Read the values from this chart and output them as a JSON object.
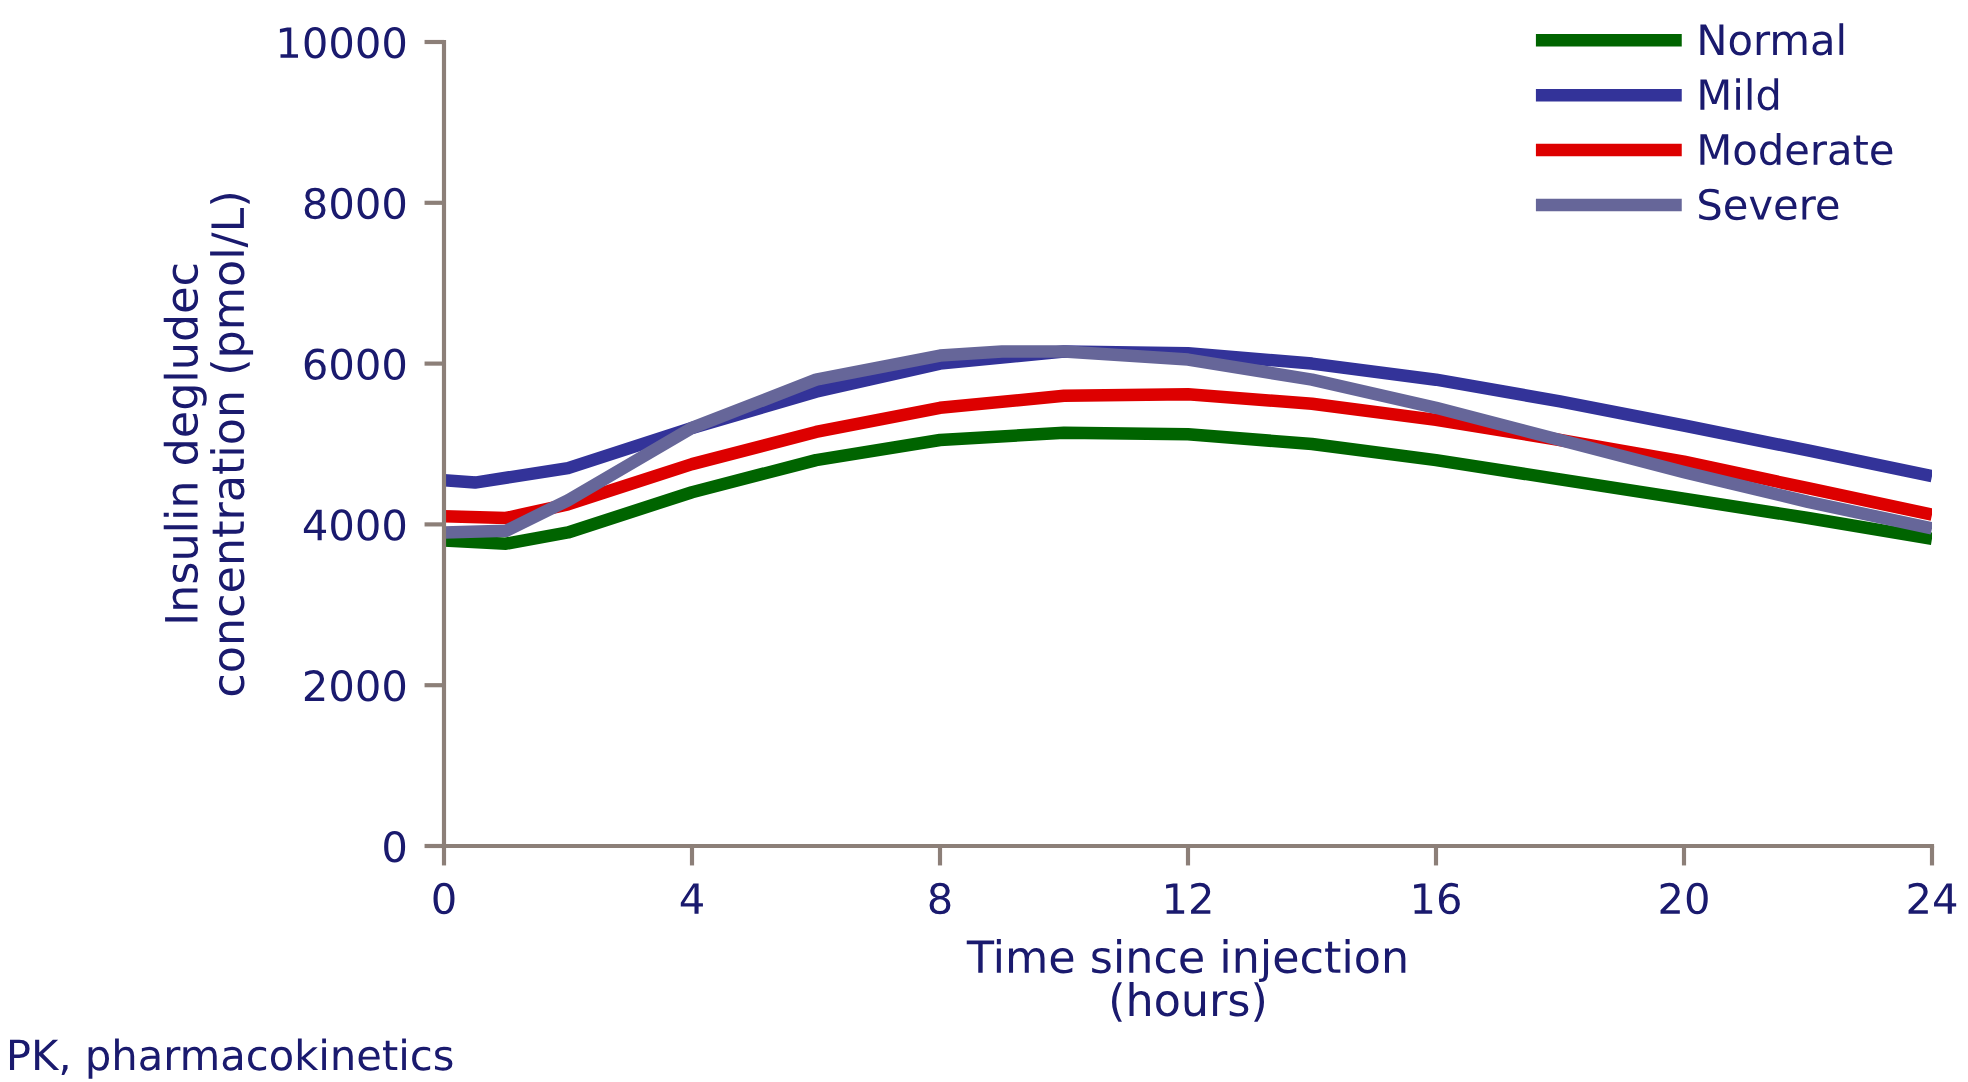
{
  "chart_data": {
    "type": "line",
    "xlabel": "Time since injection\n(hours)",
    "ylabel": "Insulin degludec\nconcentration (pmol/L)",
    "xlim": [
      0,
      24
    ],
    "xticks": [
      0,
      4,
      8,
      12,
      16,
      20,
      24
    ],
    "ylim": [
      0,
      10000
    ],
    "yticks": [
      0,
      2000,
      4000,
      6000,
      8000,
      10000
    ],
    "legend": "top right",
    "grid": false,
    "marker": "none",
    "line_style": "solid",
    "annotations": [
      "PK, pharmacokinetics"
    ],
    "series": [
      {
        "name": "Normal",
        "color": "#006400",
        "x": [
          0,
          1,
          2,
          4,
          6,
          8,
          10,
          12,
          14,
          16,
          18,
          20,
          22,
          24
        ],
        "values": [
          3800,
          3760,
          3900,
          4400,
          4800,
          5050,
          5140,
          5120,
          5000,
          4800,
          4560,
          4320,
          4080,
          3820
        ]
      },
      {
        "name": "Mild",
        "color": "#333399",
        "x": [
          0,
          0.5,
          2,
          4,
          6,
          8,
          10,
          12,
          14,
          16,
          18,
          20,
          22,
          24
        ],
        "values": [
          4550,
          4520,
          4700,
          5200,
          5650,
          6000,
          6150,
          6130,
          6000,
          5800,
          5530,
          5230,
          4920,
          4600
        ]
      },
      {
        "name": "Moderate",
        "color": "#dd0000",
        "x": [
          0,
          1,
          2,
          4,
          6,
          8,
          10,
          12,
          14,
          16,
          18,
          20,
          22,
          24
        ],
        "values": [
          4100,
          4080,
          4250,
          4750,
          5150,
          5450,
          5600,
          5620,
          5500,
          5300,
          5050,
          4780,
          4450,
          4120
        ]
      },
      {
        "name": "Severe",
        "color": "#666699",
        "x": [
          0,
          1,
          2,
          4,
          6,
          8,
          9,
          10,
          12,
          14,
          16,
          18,
          20,
          22,
          24
        ],
        "values": [
          3900,
          3920,
          4300,
          5200,
          5800,
          6100,
          6150,
          6150,
          6050,
          5800,
          5450,
          5050,
          4650,
          4280,
          3950
        ]
      }
    ]
  }
}
